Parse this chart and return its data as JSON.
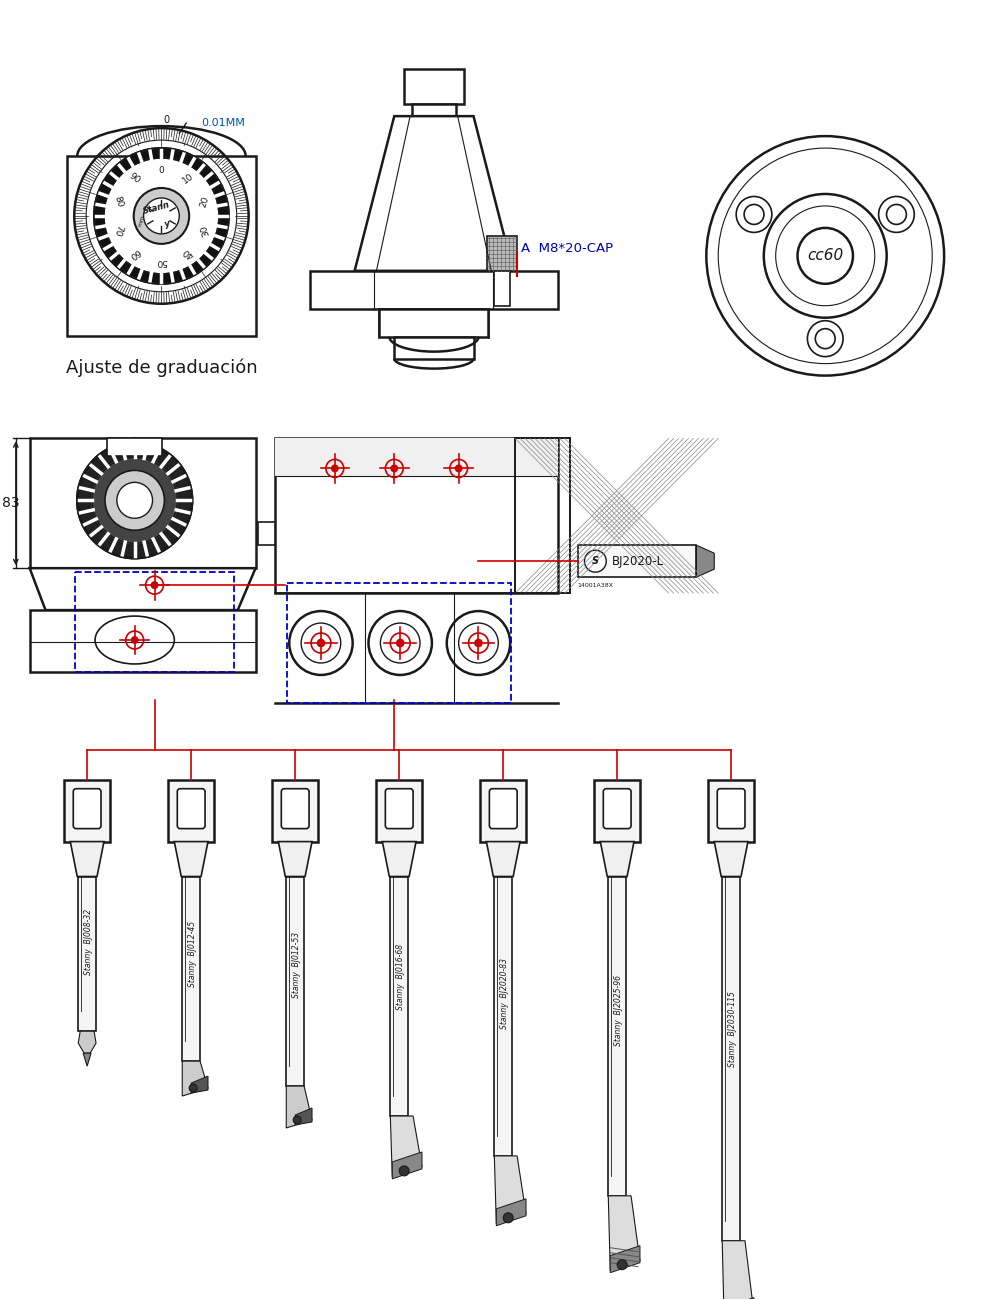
{
  "bg_color": "#ffffff",
  "line_color": "#1a1a1a",
  "red_color": "#cc0000",
  "blue_color": "#0000cc",
  "label_ajuste": "Ajuste de graduación",
  "label_m8": "A  M8*20-CAP",
  "label_83": "83",
  "label_bj2020": "BJ2020-L",
  "tool_labels": [
    "BJ008-32",
    "BJ012-45",
    "BJ012-53",
    "BJ016-68",
    "BJ2020-83",
    "BJ2025-96",
    "BJ2030-115"
  ],
  "tool_brand": "Stanny"
}
